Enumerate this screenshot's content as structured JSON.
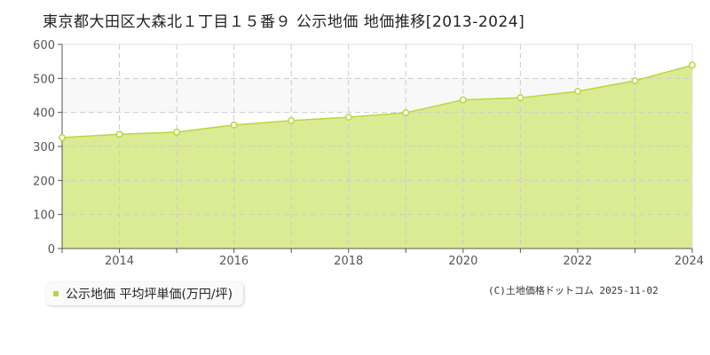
{
  "title": "東京都大田区大森北１丁目１５番９ 公示地価 地価推移[2013-2024]",
  "legend": {
    "label": "公示地価 平均坪単価(万円/坪)",
    "color": "#b7d83b"
  },
  "credit": "(C)土地価格ドットコム 2025-11-02",
  "colors": {
    "fill": "#dbeb94",
    "line": "#b7d83b",
    "grid": "#cccccc",
    "band": "#f8f8f8"
  },
  "chart_data": {
    "type": "area",
    "title": "東京都大田区大森北１丁目１５番９ 公示地価 地価推移[2013-2024]",
    "xlabel": "",
    "ylabel": "",
    "x": [
      2013,
      2014,
      2015,
      2016,
      2017,
      2018,
      2019,
      2020,
      2021,
      2022,
      2023,
      2024
    ],
    "series": [
      {
        "name": "公示地価 平均坪単価(万円/坪)",
        "values": [
          326,
          336,
          342,
          363,
          376,
          386,
          399,
          437,
          443,
          462,
          493,
          539
        ]
      }
    ],
    "ylim": [
      0,
      600
    ],
    "yticks": [
      0,
      100,
      200,
      300,
      400,
      500,
      600
    ],
    "xticks_labeled": [
      2014,
      2016,
      2018,
      2020,
      2022,
      2024
    ],
    "grid": true,
    "legend_position": "bottom-left"
  }
}
